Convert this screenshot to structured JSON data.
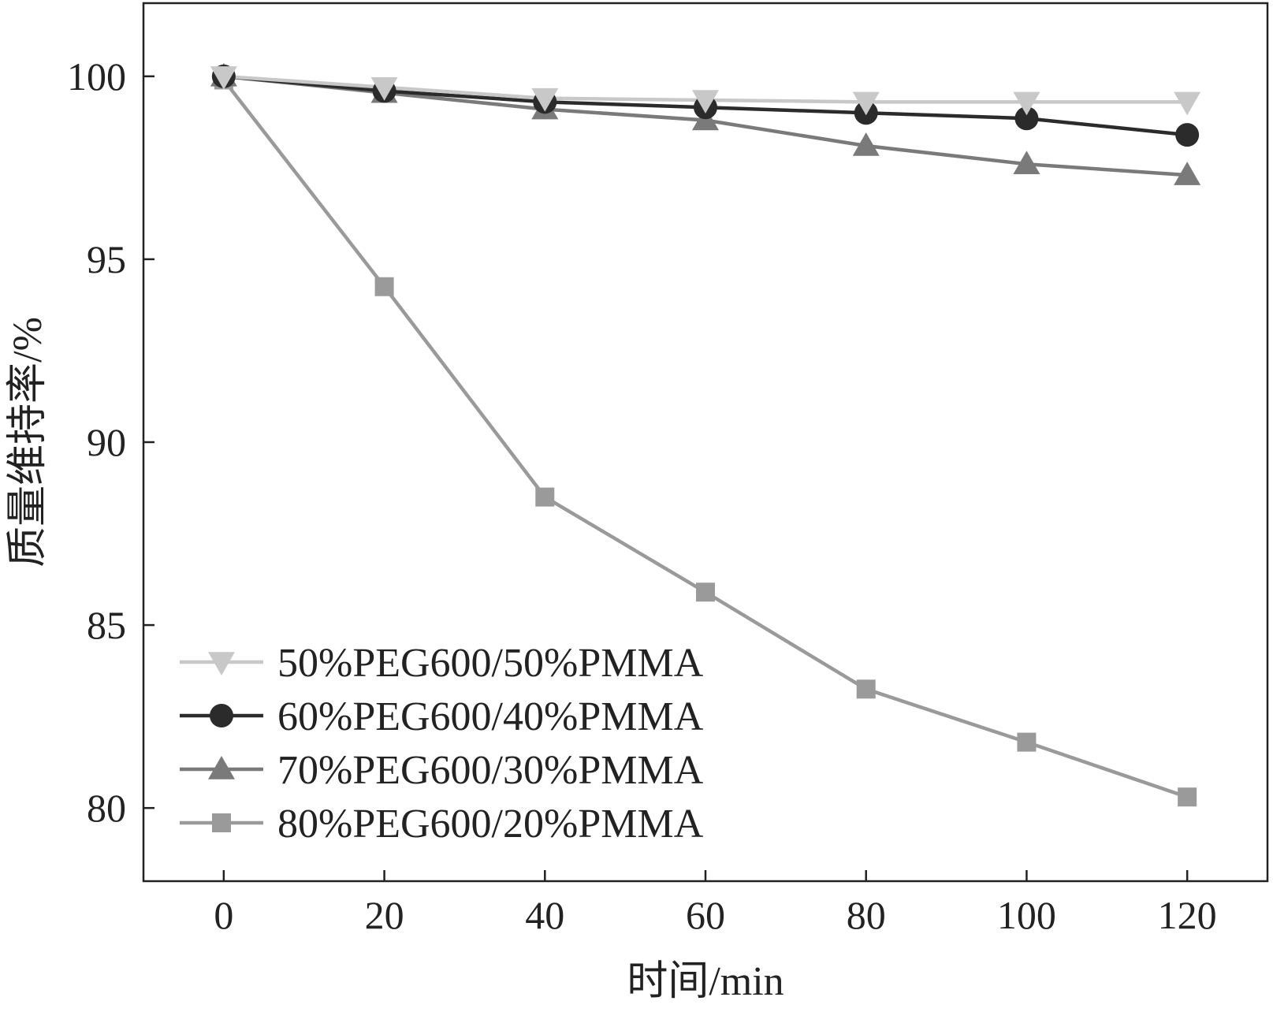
{
  "chart_data": {
    "type": "line",
    "title": "",
    "xlabel": "时间/min",
    "ylabel": "质量维持率/%",
    "x": [
      0,
      20,
      40,
      60,
      80,
      100,
      120
    ],
    "xlim": [
      -10,
      130
    ],
    "ylim": [
      78,
      102
    ],
    "xticks": [
      "0",
      "20",
      "40",
      "60",
      "80",
      "100",
      "120"
    ],
    "yticks": [
      "80",
      "85",
      "90",
      "95",
      "100"
    ],
    "grid": false,
    "legend_position": "bottom-left",
    "series": [
      {
        "name": "50%PEG600/50%PMMA",
        "marker": "triangle-down",
        "color": "#c8c8c8",
        "values": [
          100,
          99.7,
          99.4,
          99.35,
          99.3,
          99.3,
          99.3
        ]
      },
      {
        "name": "60%PEG600/40%PMMA",
        "marker": "circle",
        "color": "#2b2b2b",
        "values": [
          100,
          99.6,
          99.3,
          99.15,
          99.0,
          98.85,
          98.4
        ]
      },
      {
        "name": "70%PEG600/30%PMMA",
        "marker": "triangle-up",
        "color": "#7a7a7a",
        "values": [
          100,
          99.55,
          99.1,
          98.8,
          98.1,
          97.6,
          97.3
        ]
      },
      {
        "name": "80%PEG600/20%PMMA",
        "marker": "square",
        "color": "#9a9a9a",
        "values": [
          99.9,
          94.25,
          88.5,
          85.9,
          83.25,
          81.8,
          80.3
        ]
      }
    ]
  }
}
